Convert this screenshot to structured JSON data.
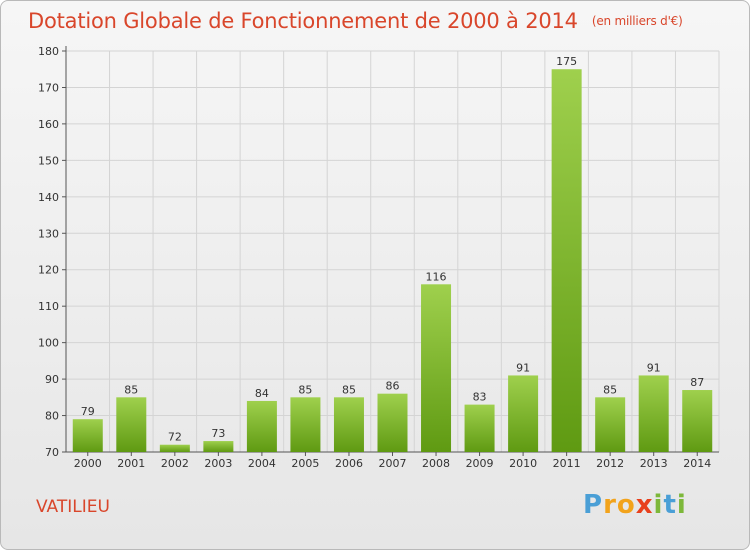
{
  "title": "Dotation Globale de Fonctionnement de 2000 à 2014",
  "unit_note": "(en milliers d'€)",
  "commune": "VATILIEU",
  "logo": {
    "letters": [
      "P",
      "r",
      "o",
      "x",
      "i",
      "t",
      "i"
    ],
    "colors": [
      "#4a9fd6",
      "#f2a31b",
      "#f2a31b",
      "#e8401c",
      "#7db83a",
      "#4a9fd6",
      "#7db83a"
    ]
  },
  "colors": {
    "bar_top": "#9fd04d",
    "bar_bottom": "#5f9a12",
    "title": "#d9462b"
  },
  "chart_data": {
    "type": "bar",
    "categories": [
      "2000",
      "2001",
      "2002",
      "2003",
      "2004",
      "2005",
      "2006",
      "2007",
      "2008",
      "2009",
      "2010",
      "2011",
      "2012",
      "2013",
      "2014"
    ],
    "values": [
      79,
      85,
      72,
      73,
      84,
      85,
      85,
      86,
      116,
      83,
      91,
      175,
      85,
      91,
      87
    ],
    "ylim": [
      70,
      180
    ],
    "yticks": [
      70,
      80,
      90,
      100,
      110,
      120,
      130,
      140,
      150,
      160,
      170,
      180
    ],
    "grid": true,
    "xlabel": "",
    "ylabel": ""
  }
}
